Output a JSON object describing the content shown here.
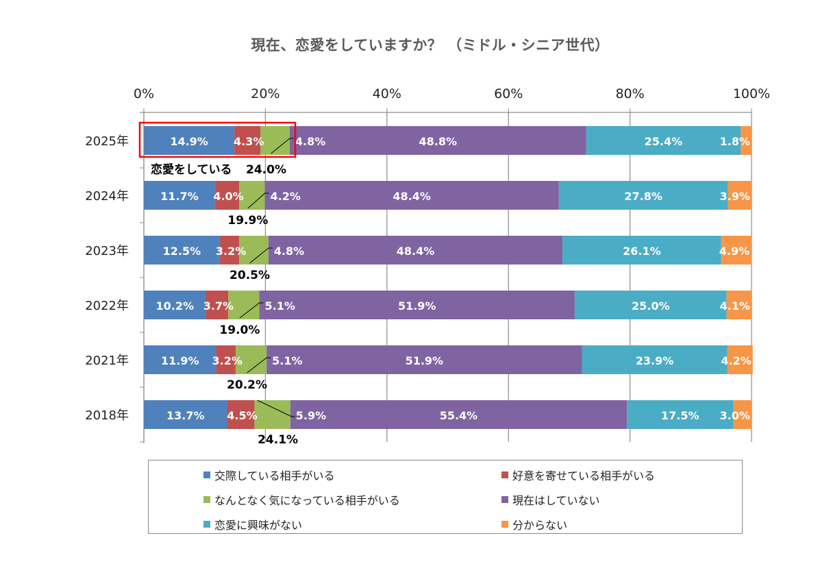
{
  "chart_data": {
    "type": "bar",
    "orientation": "horizontal",
    "stacked": "percent",
    "title": "現在、恋愛をしていますか？ （ミドル・シニア世代）",
    "xlabel": "",
    "ylabel": "",
    "xlim": [
      0,
      100
    ],
    "x_ticks": [
      "0%",
      "20%",
      "40%",
      "60%",
      "80%",
      "100%"
    ],
    "x_tick_values": [
      0,
      20,
      40,
      60,
      80,
      100
    ],
    "x_axis_position": "top",
    "grid": true,
    "legend_position": "bottom",
    "categories": [
      "2025年",
      "2024年",
      "2023年",
      "2022年",
      "2021年",
      "2018年"
    ],
    "series": [
      {
        "name": "交際している相手がいる",
        "color": "#4F81BD",
        "values": [
          14.9,
          11.7,
          12.5,
          10.2,
          11.9,
          13.7
        ]
      },
      {
        "name": "好意を寄せている相手がいる",
        "color": "#C0504D",
        "values": [
          4.3,
          4.0,
          3.2,
          3.7,
          3.2,
          4.5
        ]
      },
      {
        "name": "なんとなく気になっている相手がいる",
        "color": "#9BBB59",
        "values": [
          4.8,
          4.2,
          4.8,
          5.1,
          5.1,
          5.9
        ]
      },
      {
        "name": "現在はしていない",
        "color": "#8064A2",
        "values": [
          48.8,
          48.4,
          48.4,
          51.9,
          51.9,
          55.4
        ]
      },
      {
        "name": "恋愛に興味がない",
        "color": "#4BACC6",
        "values": [
          25.4,
          27.8,
          26.1,
          25.0,
          23.9,
          17.5
        ]
      },
      {
        "name": "分からない",
        "color": "#F79646",
        "values": [
          1.8,
          3.9,
          4.9,
          4.1,
          4.2,
          3.0
        ]
      }
    ],
    "value_labels": [
      [
        "14.9%",
        "4.3%",
        "4.8%",
        "48.8%",
        "25.4%",
        "1.8%"
      ],
      [
        "11.7%",
        "4.0%",
        "4.2%",
        "48.4%",
        "27.8%",
        "3.9%"
      ],
      [
        "12.5%",
        "3.2%",
        "4.8%",
        "48.4%",
        "26.1%",
        "4.9%"
      ],
      [
        "10.2%",
        "3.7%",
        "5.1%",
        "51.9%",
        "25.0%",
        "4.1%"
      ],
      [
        "11.9%",
        "3.2%",
        "5.1%",
        "51.9%",
        "23.9%",
        "4.2%"
      ],
      [
        "13.7%",
        "4.5%",
        "5.9%",
        "55.4%",
        "17.5%",
        "3.0%"
      ]
    ],
    "annotations": {
      "in_love_totals": [
        "24.0%",
        "19.9%",
        "20.5%",
        "19.0%",
        "20.2%",
        "24.1%"
      ],
      "in_love_totals_values": [
        24.0,
        19.9,
        20.5,
        19.0,
        20.2,
        24.1
      ],
      "highlight_label": "恋愛をしている",
      "highlight_category": "2025年",
      "highlight_color": "#FF0000"
    }
  }
}
